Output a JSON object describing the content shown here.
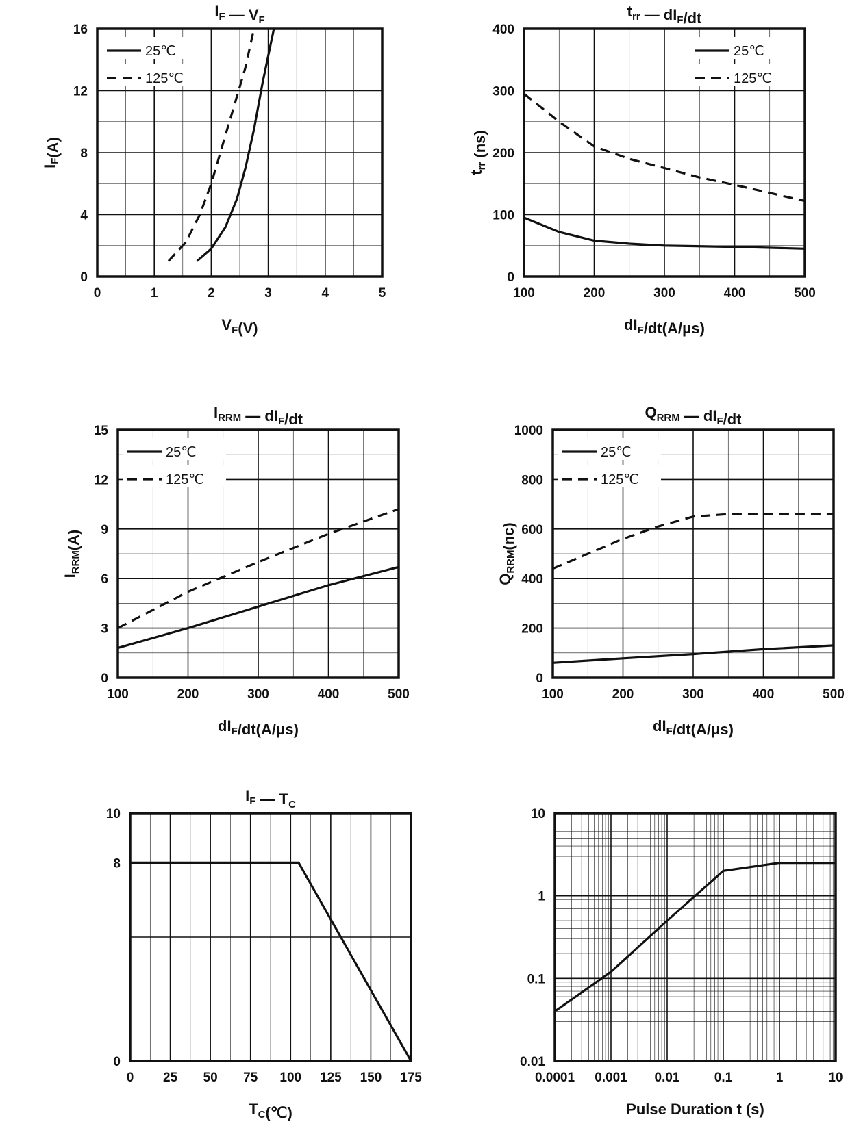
{
  "chart_data": [
    {
      "id": "vf",
      "type": "line",
      "title": "I_F — V_F",
      "xlabel": "V_F(V)",
      "ylabel": "I_F(A)",
      "xlim": [
        0,
        5
      ],
      "ylim": [
        0,
        16
      ],
      "xticks": [
        "0",
        "1",
        "2",
        "3",
        "4",
        "5"
      ],
      "yticks": [
        "0",
        "4",
        "8",
        "12",
        "16"
      ],
      "legend": "top-left",
      "series": [
        {
          "name": "25℃",
          "style": "solid",
          "x": [
            1.75,
            2.0,
            2.25,
            2.45,
            2.6,
            2.75,
            2.9,
            3.1
          ],
          "y": [
            1,
            1.8,
            3.2,
            5,
            7,
            9.5,
            12.5,
            16
          ]
        },
        {
          "name": "125℃",
          "style": "dashed",
          "x": [
            1.25,
            1.55,
            1.8,
            2.0,
            2.2,
            2.4,
            2.6,
            2.75
          ],
          "y": [
            1,
            2.2,
            4,
            6,
            8.5,
            11,
            13.5,
            16
          ]
        }
      ]
    },
    {
      "id": "trr",
      "type": "line",
      "title": "t_rr — dI_F/dt",
      "xlabel": "dI_F/dt(A/μs)",
      "ylabel": "t_rr (ns)",
      "xlim": [
        100,
        500
      ],
      "ylim": [
        0,
        400
      ],
      "xticks": [
        "100",
        "200",
        "300",
        "400",
        "500"
      ],
      "yticks": [
        "0",
        "100",
        "200",
        "300",
        "400"
      ],
      "legend": "top-right",
      "series": [
        {
          "name": "25℃",
          "style": "solid",
          "x": [
            100,
            150,
            200,
            250,
            300,
            400,
            500
          ],
          "y": [
            95,
            72,
            58,
            53,
            50,
            48,
            45
          ]
        },
        {
          "name": "125℃",
          "style": "dashed",
          "x": [
            100,
            150,
            200,
            250,
            300,
            350,
            400,
            450,
            500
          ],
          "y": [
            295,
            250,
            210,
            190,
            175,
            160,
            148,
            135,
            122
          ]
        }
      ]
    },
    {
      "id": "irrm",
      "type": "line",
      "title": "I_RRM — dI_F/dt",
      "xlabel": "dI_F/dt(A/μs)",
      "ylabel": "I_RRM(A)",
      "xlim": [
        100,
        500
      ],
      "ylim": [
        0,
        15
      ],
      "xticks": [
        "100",
        "200",
        "300",
        "400",
        "500"
      ],
      "yticks": [
        "0",
        "3",
        "6",
        "9",
        "12",
        "15"
      ],
      "legend": "top-left",
      "series": [
        {
          "name": "25℃",
          "style": "solid",
          "x": [
            100,
            200,
            300,
            400,
            500
          ],
          "y": [
            1.8,
            3.0,
            4.3,
            5.6,
            6.7
          ]
        },
        {
          "name": "125℃",
          "style": "dashed",
          "x": [
            100,
            200,
            300,
            400,
            500
          ],
          "y": [
            3.0,
            5.2,
            7.0,
            8.7,
            10.2
          ]
        }
      ]
    },
    {
      "id": "qrrm",
      "type": "line",
      "title": "Q_RRM — dI_F/dt",
      "xlabel": "dI_F/dt(A/μs)",
      "ylabel": "Q_RRM(nc)",
      "xlim": [
        100,
        500
      ],
      "ylim": [
        0,
        1000
      ],
      "xticks": [
        "100",
        "200",
        "300",
        "400",
        "500"
      ],
      "yticks": [
        "0",
        "200",
        "400",
        "600",
        "800",
        "1000"
      ],
      "legend": "top-left",
      "series": [
        {
          "name": "25℃",
          "style": "solid",
          "x": [
            100,
            200,
            300,
            400,
            500
          ],
          "y": [
            60,
            78,
            95,
            115,
            130
          ]
        },
        {
          "name": "125℃",
          "style": "dashed",
          "x": [
            100,
            150,
            200,
            250,
            300,
            350,
            400,
            500
          ],
          "y": [
            440,
            500,
            560,
            610,
            650,
            660,
            660,
            660
          ]
        }
      ]
    },
    {
      "id": "iftc",
      "type": "line",
      "title": "I_F — T_C",
      "xlabel": "T_C(℃)",
      "ylabel": "",
      "xlim": [
        0,
        175
      ],
      "ylim": [
        0,
        10
      ],
      "xticks": [
        "0",
        "25",
        "50",
        "75",
        "100",
        "125",
        "150",
        "175"
      ],
      "yticks": [
        "0",
        "8",
        "10"
      ],
      "legend": "",
      "series": [
        {
          "name": "",
          "style": "solid",
          "x": [
            0,
            105,
            175
          ],
          "y": [
            8,
            8,
            0
          ]
        }
      ]
    },
    {
      "id": "zth",
      "type": "line",
      "title": "",
      "xlabel": "Pulse Duration t (s)",
      "ylabel": "",
      "xscale": "log",
      "yscale": "log",
      "xlim": [
        0.0001,
        10
      ],
      "ylim": [
        0.01,
        10
      ],
      "xticks": [
        "0.0001",
        "0.001",
        "0.01",
        "0.1",
        "1",
        "10"
      ],
      "yticks": [
        "0.01",
        "0.1",
        "1",
        "10"
      ],
      "legend": "",
      "series": [
        {
          "name": "",
          "style": "solid",
          "x": [
            0.0001,
            0.001,
            0.01,
            0.1,
            1,
            10
          ],
          "y": [
            0.04,
            0.12,
            0.5,
            2.0,
            2.5,
            2.5
          ]
        }
      ]
    }
  ]
}
